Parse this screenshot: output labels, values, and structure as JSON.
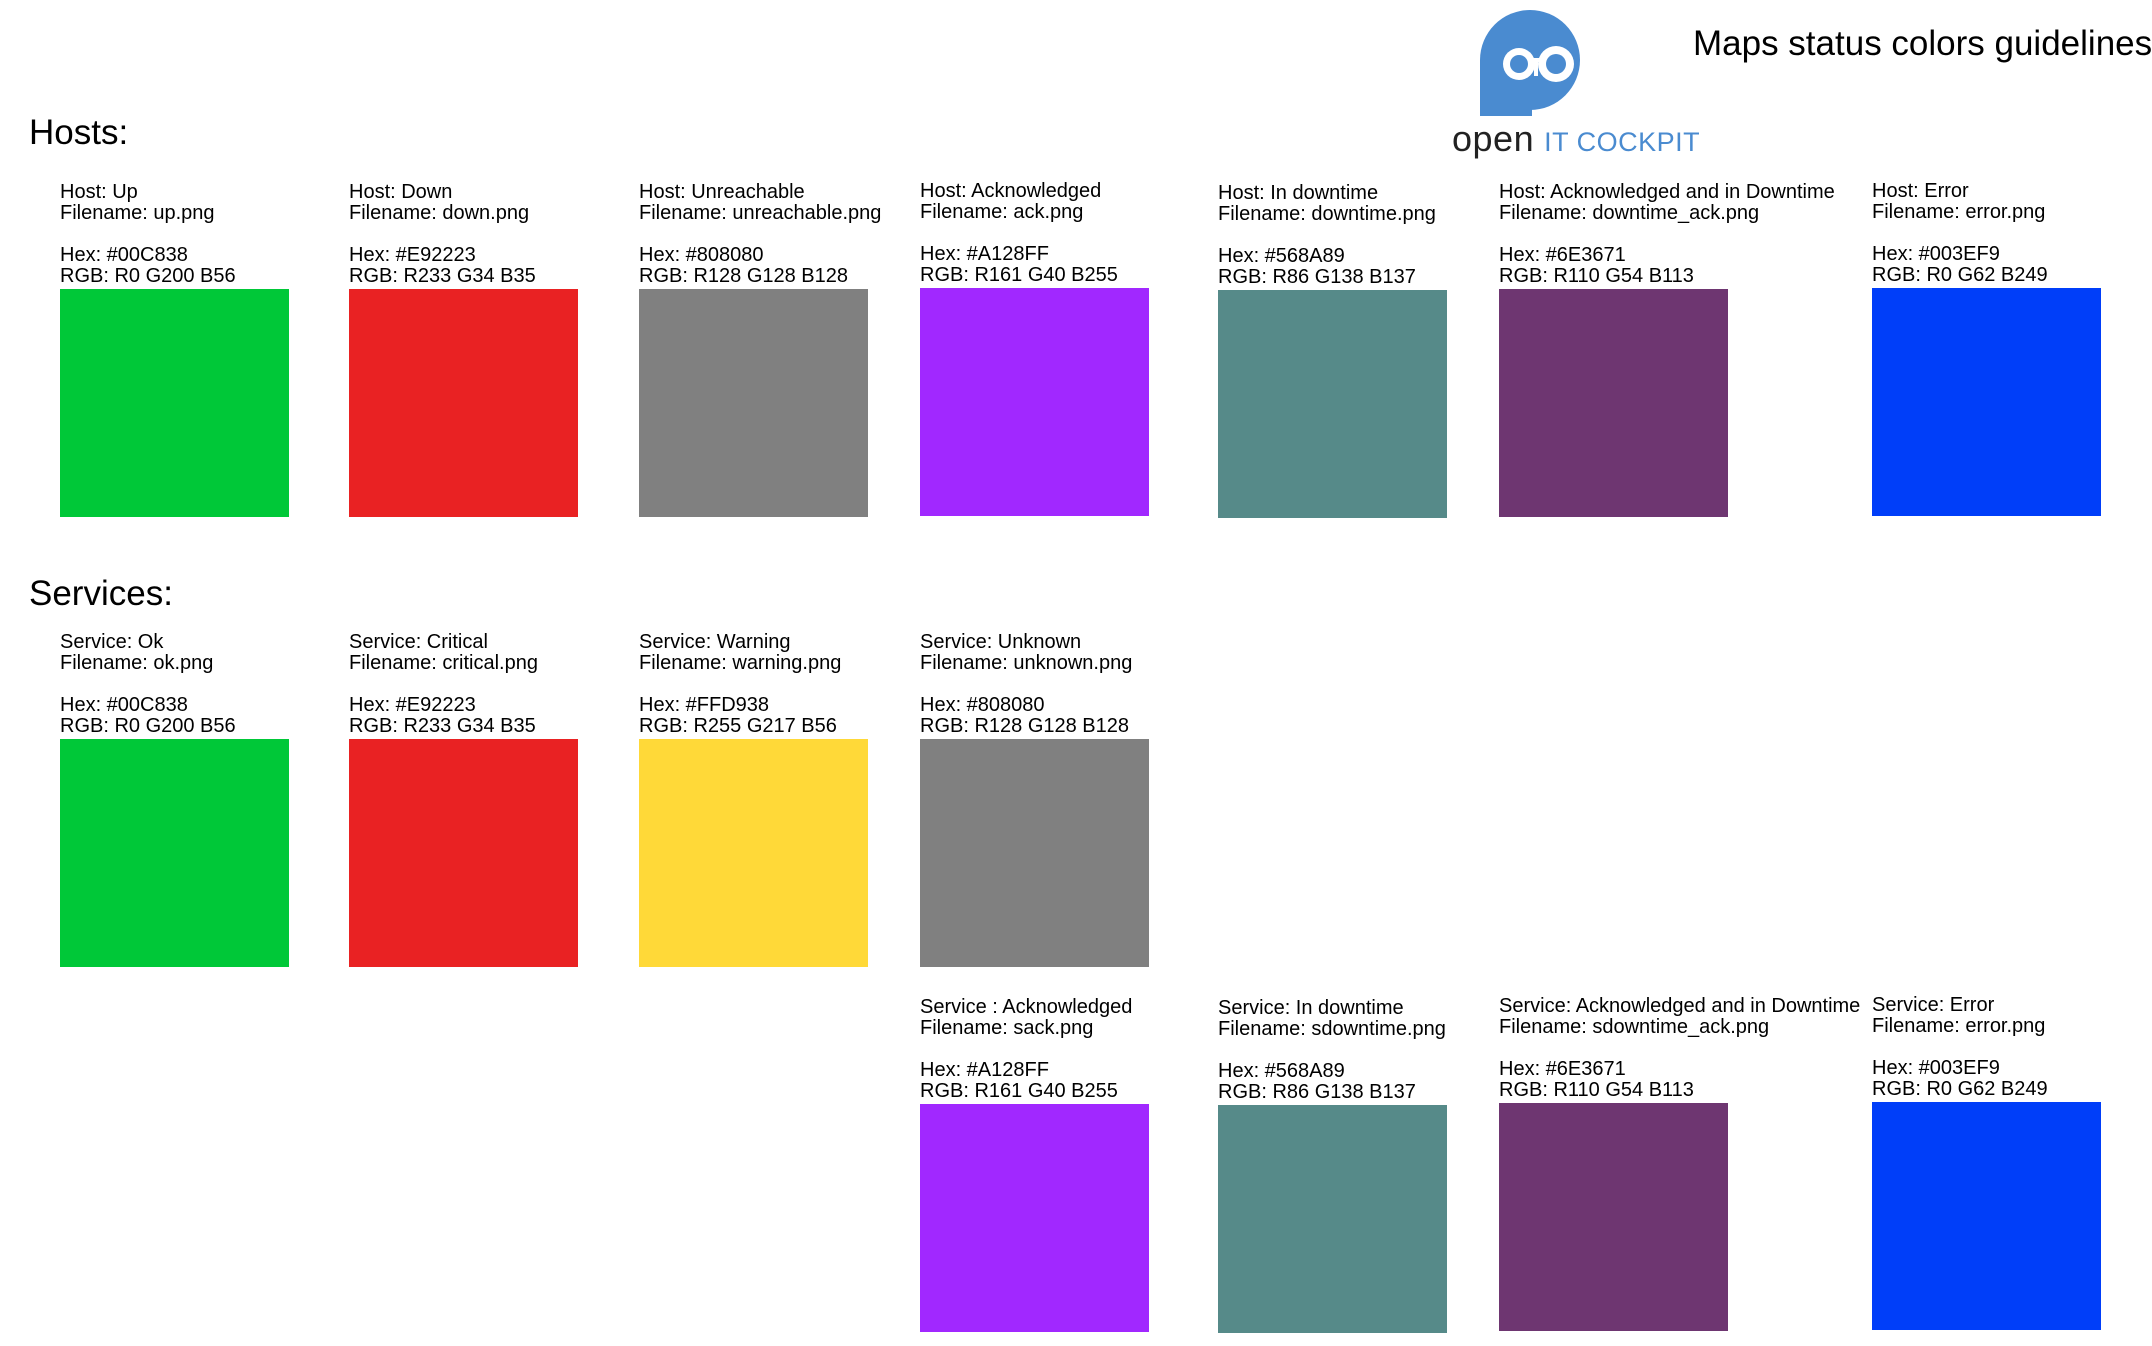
{
  "header": {
    "title": "Maps status colors guidelines",
    "logo": {
      "word1": "open",
      "word2": "IT COCKPIT",
      "color": "#4a8bd0",
      "icon": "openitcockpit-logo-icon"
    }
  },
  "hosts": {
    "title": "Hosts:",
    "items": [
      {
        "name": "Host: Up",
        "filename": "Filename: up.png",
        "hex": "Hex: #00C838",
        "rgb": "RGB: R0 G200 B56",
        "color": "#00C838"
      },
      {
        "name": "Host: Down",
        "filename": "Filename: down.png",
        "hex": "Hex: #E92223",
        "rgb": "RGB: R233 G34 B35",
        "color": "#E92223"
      },
      {
        "name": "Host: Unreachable",
        "filename": "Filename: unreachable.png",
        "hex": "Hex: #808080",
        "rgb": "RGB: R128 G128 B128",
        "color": "#808080"
      },
      {
        "name": "Host: Acknowledged",
        "filename": "Filename: ack.png",
        "hex": "Hex: #A128FF",
        "rgb": "RGB: R161 G40 B255",
        "color": "#A128FF"
      },
      {
        "name": "Host: In downtime",
        "filename": "Filename: downtime.png",
        "hex": "Hex: #568A89",
        "rgb": "RGB: R86 G138 B137",
        "color": "#568A89"
      },
      {
        "name": "Host: Acknowledged and in Downtime",
        "filename": "Filename: downtime_ack.png",
        "hex": "Hex: #6E3671",
        "rgb": "RGB: R110 G54 B113",
        "color": "#6E3671"
      },
      {
        "name": "Host: Error",
        "filename": "Filename: error.png",
        "hex": "Hex: #003EF9",
        "rgb": "RGB: R0 G62 B249",
        "color": "#003EF9"
      }
    ]
  },
  "services": {
    "title": "Services:",
    "items": [
      {
        "name": "Service: Ok",
        "filename": "Filename: ok.png",
        "hex": "Hex: #00C838",
        "rgb": "RGB: R0 G200 B56",
        "color": "#00C838"
      },
      {
        "name": "Service: Critical",
        "filename": "Filename: critical.png",
        "hex": "Hex: #E92223",
        "rgb": "RGB: R233 G34 B35",
        "color": "#E92223"
      },
      {
        "name": "Service: Warning",
        "filename": "Filename: warning.png",
        "hex": "Hex: #FFD938",
        "rgb": "RGB: R255 G217 B56",
        "color": "#FFD938"
      },
      {
        "name": "Service: Unknown",
        "filename": "Filename: unknown.png",
        "hex": "Hex: #808080",
        "rgb": "RGB: R128 G128 B128",
        "color": "#808080"
      },
      {
        "name": "Service : Acknowledged",
        "filename": "Filename: sack.png",
        "hex": "Hex: #A128FF",
        "rgb": "RGB: R161 G40 B255",
        "color": "#A128FF"
      },
      {
        "name": "Service: In downtime",
        "filename": "Filename: sdowntime.png",
        "hex": "Hex: #568A89",
        "rgb": "RGB: R86 G138 B137",
        "color": "#568A89"
      },
      {
        "name": "Service: Acknowledged and in Downtime",
        "filename": "Filename: sdowntime_ack.png",
        "hex": "Hex: #6E3671",
        "rgb": "RGB: R110 G54 B113",
        "color": "#6E3671"
      },
      {
        "name": "Service: Error",
        "filename": "Filename: error.png",
        "hex": "Hex: #003EF9",
        "rgb": "RGB: R0 G62 B249",
        "color": "#003EF9"
      }
    ]
  }
}
